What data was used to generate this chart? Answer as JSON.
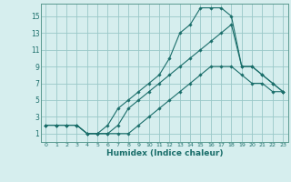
{
  "xlabel": "Humidex (Indice chaleur)",
  "bg_color": "#d6eeee",
  "grid_color": "#9ac8c8",
  "line_color": "#1a6e6a",
  "xlim": [
    -0.5,
    23.5
  ],
  "ylim": [
    0,
    16.5
  ],
  "xticks": [
    0,
    1,
    2,
    3,
    4,
    5,
    6,
    7,
    8,
    9,
    10,
    11,
    12,
    13,
    14,
    15,
    16,
    17,
    18,
    19,
    20,
    21,
    22,
    23
  ],
  "yticks": [
    1,
    3,
    5,
    7,
    9,
    11,
    13,
    15
  ],
  "series1_x": [
    0,
    1,
    2,
    3,
    4,
    5,
    6,
    7,
    8,
    9,
    10,
    11,
    12,
    13,
    14,
    15,
    16,
    17,
    18,
    19,
    20,
    21,
    22,
    23
  ],
  "series1_y": [
    2,
    2,
    2,
    2,
    1,
    1,
    1,
    1,
    1,
    2,
    3,
    4,
    5,
    6,
    7,
    8,
    9,
    9,
    9,
    8,
    7,
    7,
    6,
    6
  ],
  "series2_x": [
    0,
    1,
    2,
    3,
    4,
    5,
    6,
    7,
    8,
    9,
    10,
    11,
    12,
    13,
    14,
    15,
    16,
    17,
    18,
    19,
    20,
    21,
    22,
    23
  ],
  "series2_y": [
    2,
    2,
    2,
    2,
    1,
    1,
    2,
    4,
    5,
    6,
    7,
    8,
    10,
    13,
    14,
    16,
    16,
    16,
    15,
    9,
    9,
    8,
    7,
    6
  ],
  "series3_x": [
    0,
    1,
    2,
    3,
    4,
    5,
    6,
    7,
    8,
    9,
    10,
    11,
    12,
    13,
    14,
    15,
    16,
    17,
    18,
    19,
    20,
    21,
    22,
    23
  ],
  "series3_y": [
    2,
    2,
    2,
    2,
    1,
    1,
    1,
    2,
    4,
    5,
    6,
    7,
    8,
    9,
    10,
    11,
    12,
    13,
    14,
    9,
    9,
    8,
    7,
    6
  ]
}
